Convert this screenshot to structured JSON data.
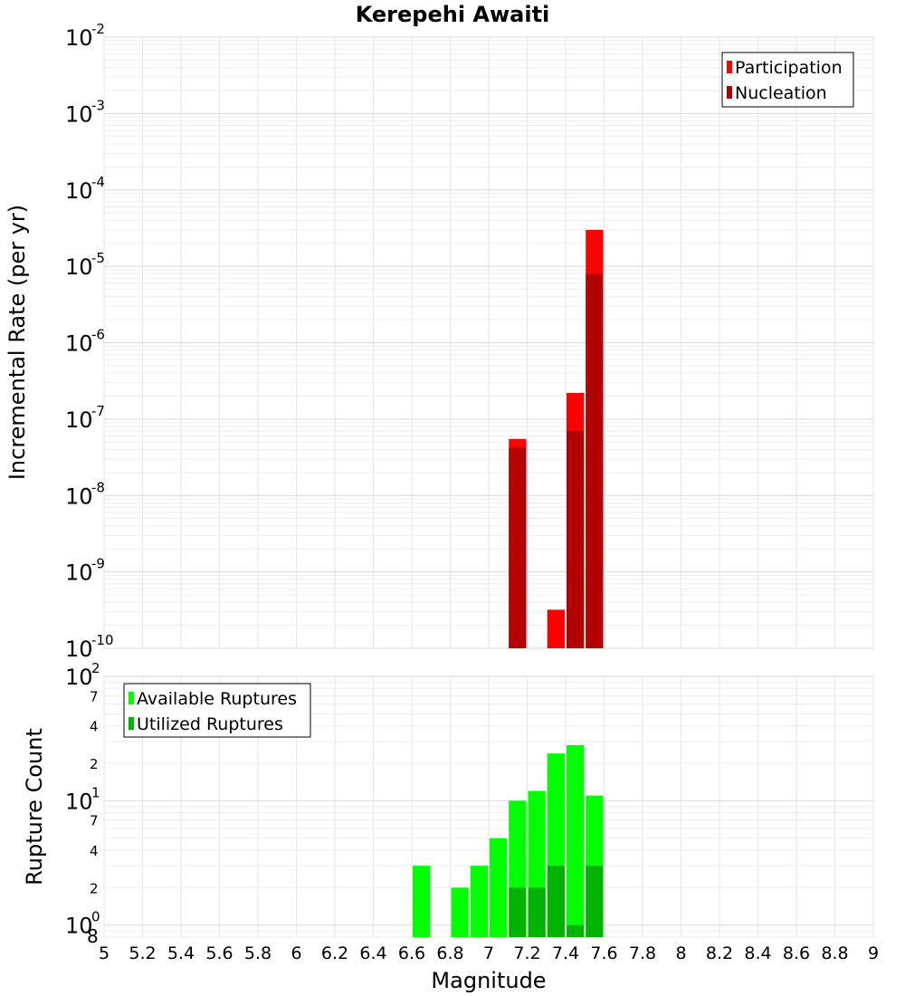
{
  "chart_data": [
    {
      "type": "bar",
      "title": "Kerepehi Awaiti",
      "ylabel": "Incremental Rate (per yr)",
      "xlabel": "",
      "y_scale": "log",
      "ylim": [
        1e-10,
        0.01
      ],
      "xlim": [
        5,
        9
      ],
      "bar_width": 0.1,
      "grid": true,
      "legend_position": "top-right",
      "y_major_ticks": [
        {
          "base": "10",
          "exp": "-2",
          "value": 0.01
        },
        {
          "base": "10",
          "exp": "-3",
          "value": 0.001
        },
        {
          "base": "10",
          "exp": "-4",
          "value": 0.0001
        },
        {
          "base": "10",
          "exp": "-5",
          "value": 1e-05
        },
        {
          "base": "10",
          "exp": "-6",
          "value": 1e-06
        },
        {
          "base": "10",
          "exp": "-7",
          "value": 1e-07
        },
        {
          "base": "10",
          "exp": "-8",
          "value": 1e-08
        },
        {
          "base": "10",
          "exp": "-9",
          "value": 1e-09
        },
        {
          "base": "10",
          "exp": "-10",
          "value": 1e-10
        }
      ],
      "series": [
        {
          "name": "Participation",
          "color": "#ff0000",
          "points": [
            {
              "x": 7.15,
              "y": 5.5e-08
            },
            {
              "x": 7.35,
              "y": 3.2e-10
            },
            {
              "x": 7.45,
              "y": 2.2e-07
            },
            {
              "x": 7.55,
              "y": 3e-05
            }
          ]
        },
        {
          "name": "Nucleation",
          "color": "#b30000",
          "points": [
            {
              "x": 7.15,
              "y": 4.2e-08
            },
            {
              "x": 7.45,
              "y": 7e-08
            },
            {
              "x": 7.55,
              "y": 8e-06
            }
          ]
        }
      ]
    },
    {
      "type": "bar",
      "title": "",
      "ylabel": "Rupture Count",
      "xlabel": "Magnitude",
      "y_scale": "log",
      "ylim": [
        0.8,
        100
      ],
      "xlim": [
        5,
        9
      ],
      "bar_width": 0.1,
      "grid": true,
      "legend_position": "top-left",
      "x_ticks": [
        "5",
        "5.2",
        "5.4",
        "5.6",
        "5.8",
        "6",
        "6.2",
        "6.4",
        "6.6",
        "6.8",
        "7",
        "7.2",
        "7.4",
        "7.6",
        "7.8",
        "8",
        "8.2",
        "8.4",
        "8.6",
        "8.8",
        "9"
      ],
      "y_major_ticks": [
        {
          "base": "10",
          "exp": "2",
          "value": 100
        },
        {
          "base": "10",
          "exp": "1",
          "value": 10
        },
        {
          "base": "10",
          "exp": "0",
          "value": 1
        }
      ],
      "y_minor_ticks": [
        {
          "label": "7",
          "value": 70
        },
        {
          "label": "4",
          "value": 40
        },
        {
          "label": "2",
          "value": 20
        },
        {
          "label": "7",
          "value": 7
        },
        {
          "label": "4",
          "value": 4
        },
        {
          "label": "2",
          "value": 2
        },
        {
          "label": "8",
          "value": 0.8
        }
      ],
      "series": [
        {
          "name": "Available Ruptures",
          "color": "#00ff00",
          "points": [
            {
              "x": 6.65,
              "y": 3
            },
            {
              "x": 6.85,
              "y": 2
            },
            {
              "x": 6.95,
              "y": 3
            },
            {
              "x": 7.05,
              "y": 5
            },
            {
              "x": 7.15,
              "y": 10
            },
            {
              "x": 7.25,
              "y": 12
            },
            {
              "x": 7.35,
              "y": 24
            },
            {
              "x": 7.45,
              "y": 28
            },
            {
              "x": 7.55,
              "y": 11
            }
          ]
        },
        {
          "name": "Utilized Ruptures",
          "color": "#00b300",
          "points": [
            {
              "x": 7.15,
              "y": 2
            },
            {
              "x": 7.25,
              "y": 2
            },
            {
              "x": 7.35,
              "y": 3
            },
            {
              "x": 7.45,
              "y": 1
            },
            {
              "x": 7.55,
              "y": 3
            }
          ]
        }
      ]
    }
  ]
}
